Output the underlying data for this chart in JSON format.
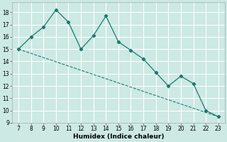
{
  "xlabel": "Humidex (Indice chaleur)",
  "bg_color": "#cce9e4",
  "grid_color": "#ffffff",
  "line_color": "#1a7a6e",
  "x_data": [
    7,
    8,
    9,
    10,
    11,
    12,
    13,
    14,
    15,
    16,
    17,
    18,
    19,
    20,
    21,
    22,
    23
  ],
  "y_data": [
    15,
    16,
    16.8,
    18.2,
    17.2,
    15.0,
    16.1,
    17.7,
    15.6,
    14.9,
    14.2,
    13.1,
    12.0,
    12.8,
    12.2,
    10.0,
    9.5
  ],
  "trend_x": [
    7,
    23
  ],
  "trend_y": [
    15.0,
    9.5
  ],
  "xlim": [
    6.5,
    23.5
  ],
  "ylim": [
    9,
    18.8
  ],
  "xticks": [
    7,
    8,
    9,
    10,
    11,
    12,
    13,
    14,
    15,
    16,
    17,
    18,
    19,
    20,
    21,
    22,
    23
  ],
  "yticks": [
    9,
    10,
    11,
    12,
    13,
    14,
    15,
    16,
    17,
    18
  ],
  "xlabel_fontsize": 6.5,
  "tick_fontsize": 5.5
}
